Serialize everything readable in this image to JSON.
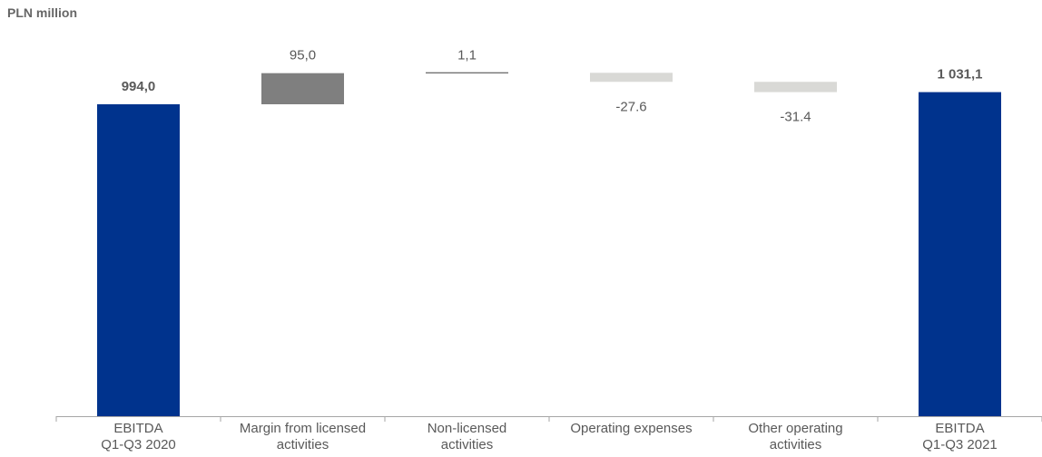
{
  "unit_label": "PLN million",
  "colors": {
    "total": "#00338d",
    "increase": "#7f7f7f",
    "decrease": "#d9d9d6",
    "connector": "#404040",
    "text": "#595959",
    "axis": "#a6a6a6"
  },
  "chart_data": {
    "type": "bar",
    "subtype": "waterfall",
    "title": "",
    "xlabel": "",
    "ylabel": "",
    "ylim": [
      0,
      1150
    ],
    "grid": false,
    "legend": "none",
    "categories": [
      [
        "EBITDA",
        "Q1-Q3 2020"
      ],
      [
        "Margin from licensed",
        "activities"
      ],
      [
        "Non-licensed",
        "activities"
      ],
      [
        "Operating expenses"
      ],
      [
        "Other operating",
        "activities"
      ],
      [
        "EBITDA",
        "Q1-Q3 2021"
      ]
    ],
    "values": [
      994.0,
      95.0,
      1.1,
      -27.6,
      -31.4,
      1031.1
    ],
    "kinds": [
      "total",
      "increase",
      "increase",
      "decrease",
      "decrease",
      "total"
    ],
    "labels": [
      "994,0",
      "95,0",
      "1,1",
      "-27.6",
      "-31.4",
      "1 031,1"
    ]
  }
}
